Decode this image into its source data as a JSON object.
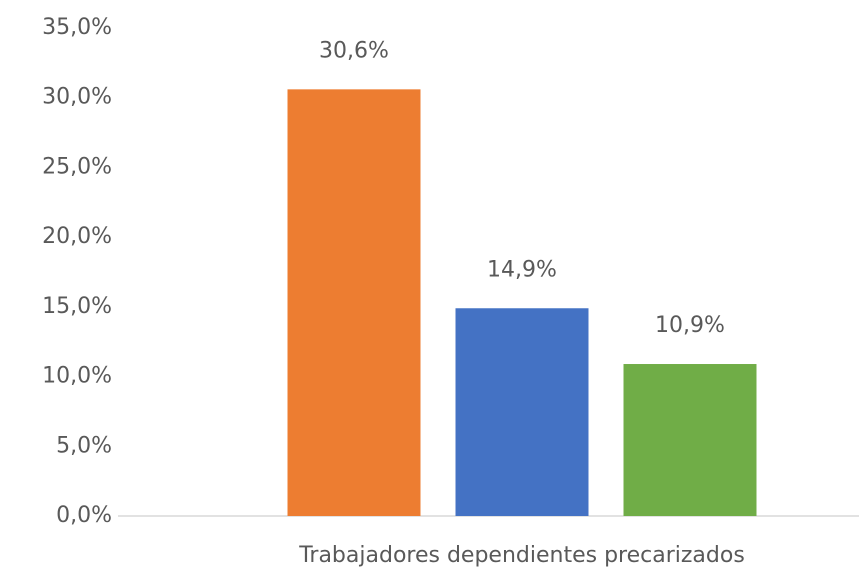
{
  "chart_data": {
    "type": "bar",
    "categories": [
      "Trabajadores dependientes precarizados"
    ],
    "series": [
      {
        "color": "#ed7d31",
        "values": [
          30.6
        ],
        "value_labels": [
          "30,6%"
        ]
      },
      {
        "color": "#4472c4",
        "values": [
          14.9
        ],
        "value_labels": [
          "14,9%"
        ]
      },
      {
        "color": "#70ad47",
        "values": [
          10.9
        ],
        "value_labels": [
          "10,9%"
        ]
      }
    ],
    "ylim": [
      0,
      35
    ],
    "yticks": [
      {
        "value": 0,
        "label": "0,0%"
      },
      {
        "value": 5,
        "label": "5,0%"
      },
      {
        "value": 10,
        "label": "10,0%"
      },
      {
        "value": 15,
        "label": "15,0%"
      },
      {
        "value": 20,
        "label": "20,0%"
      },
      {
        "value": 25,
        "label": "25,0%"
      },
      {
        "value": 30,
        "label": "30,0%"
      },
      {
        "value": 35,
        "label": "35,0%"
      }
    ],
    "grid": false
  }
}
